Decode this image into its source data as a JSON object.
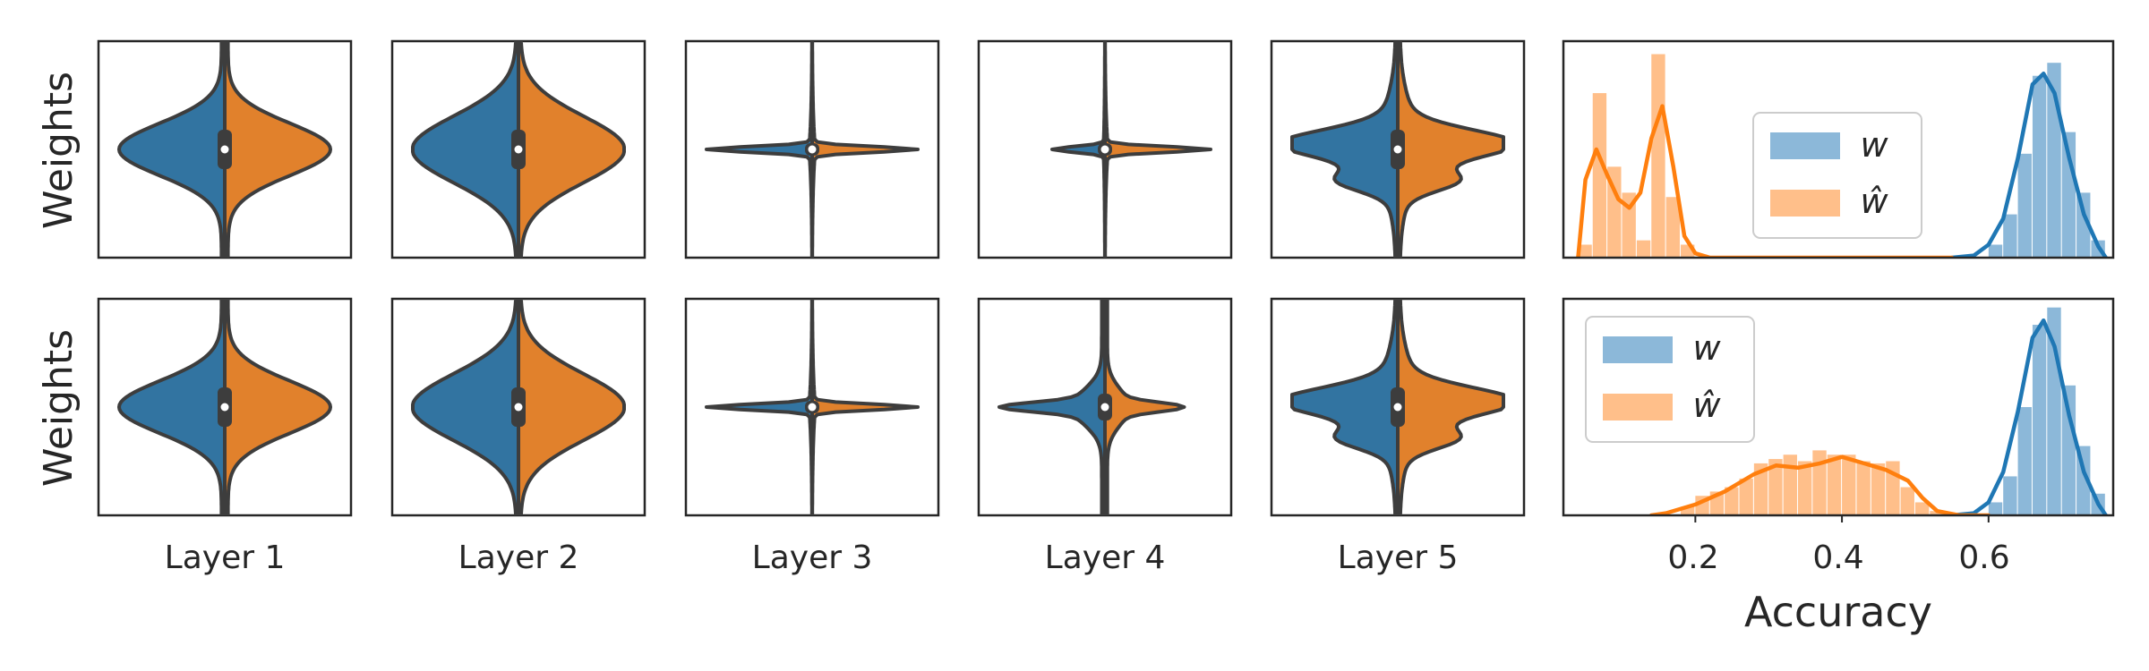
{
  "ylabels": [
    "Weights",
    "Weights"
  ],
  "layer_labels": [
    "Layer 1",
    "Layer 2",
    "Layer 3",
    "Layer 4",
    "Layer 5"
  ],
  "hist_xlabel": "Accuracy",
  "hist_xticks": [
    "0.2",
    "0.4",
    "0.6"
  ],
  "legend": [
    {
      "label": "w",
      "color": "#1f77b4"
    },
    {
      "label": "ŵ",
      "color": "#ff7f0e"
    }
  ],
  "colors": {
    "w": "#1f77b4",
    "w_hat": "#ff7f0e",
    "w_violin": "#3274a1",
    "w_hat_violin": "#e1812c",
    "hist_w": "#8cb8d9",
    "hist_w_hat": "#ffbf8a",
    "axis": "#262626",
    "violin_edge": "#3d3d3d"
  },
  "chart_data": [
    {
      "type": "violin",
      "row": 1,
      "ylabel": "Weights",
      "split": true,
      "categories": [
        "Layer 1",
        "Layer 2",
        "Layer 3",
        "Layer 4",
        "Layer 5"
      ],
      "series": [
        {
          "name": "w",
          "relative_widths": [
            0.8,
            0.8,
            0.8,
            0.4,
            0.8
          ],
          "shape": [
            "smooth",
            "wide",
            "spike",
            "spike",
            "bumpy"
          ]
        },
        {
          "name": "ŵ",
          "relative_widths": [
            0.8,
            0.8,
            0.8,
            0.8,
            0.8
          ],
          "shape": [
            "smooth",
            "wide",
            "spike",
            "spike",
            "bumpy"
          ]
        }
      ]
    },
    {
      "type": "violin",
      "row": 2,
      "ylabel": "Weights",
      "split": true,
      "categories": [
        "Layer 1",
        "Layer 2",
        "Layer 3",
        "Layer 4",
        "Layer 5"
      ],
      "series": [
        {
          "name": "w",
          "relative_widths": [
            0.8,
            0.8,
            0.8,
            0.8,
            0.8
          ],
          "shape": [
            "smooth",
            "wide",
            "spike",
            "peaked",
            "bumpy"
          ]
        },
        {
          "name": "ŵ",
          "relative_widths": [
            0.8,
            0.8,
            0.8,
            0.6,
            0.8
          ],
          "shape": [
            "smooth",
            "wide",
            "spike",
            "peaked",
            "bumpy"
          ]
        }
      ]
    },
    {
      "type": "histogram",
      "row": 1,
      "xlabel": "",
      "xlim": [
        0.02,
        0.77
      ],
      "xticks": [
        0.2,
        0.4,
        0.6
      ],
      "legend_position": "center-right",
      "series": [
        {
          "name": "w",
          "bins": [
            [
              0.6,
              0.62,
              0.06
            ],
            [
              0.62,
              0.64,
              0.2
            ],
            [
              0.64,
              0.66,
              0.48
            ],
            [
              0.66,
              0.68,
              0.84
            ],
            [
              0.68,
              0.7,
              0.9
            ],
            [
              0.7,
              0.72,
              0.58
            ],
            [
              0.72,
              0.74,
              0.3
            ],
            [
              0.74,
              0.76,
              0.08
            ]
          ],
          "kde": [
            [
              0.55,
              0.0
            ],
            [
              0.58,
              0.01
            ],
            [
              0.6,
              0.06
            ],
            [
              0.62,
              0.18
            ],
            [
              0.64,
              0.46
            ],
            [
              0.66,
              0.8
            ],
            [
              0.675,
              0.85
            ],
            [
              0.69,
              0.76
            ],
            [
              0.71,
              0.46
            ],
            [
              0.73,
              0.2
            ],
            [
              0.75,
              0.05
            ],
            [
              0.76,
              0.0
            ]
          ]
        },
        {
          "name": "ŵ",
          "bins": [
            [
              0.04,
              0.06,
              0.06
            ],
            [
              0.06,
              0.08,
              0.76
            ],
            [
              0.08,
              0.1,
              0.42
            ],
            [
              0.1,
              0.12,
              0.3
            ],
            [
              0.12,
              0.14,
              0.08
            ],
            [
              0.14,
              0.16,
              0.94
            ],
            [
              0.16,
              0.18,
              0.28
            ],
            [
              0.18,
              0.2,
              0.06
            ]
          ],
          "kde": [
            [
              0.04,
              0.0
            ],
            [
              0.05,
              0.36
            ],
            [
              0.065,
              0.5
            ],
            [
              0.08,
              0.38
            ],
            [
              0.095,
              0.27
            ],
            [
              0.11,
              0.23
            ],
            [
              0.125,
              0.3
            ],
            [
              0.14,
              0.55
            ],
            [
              0.155,
              0.7
            ],
            [
              0.17,
              0.42
            ],
            [
              0.185,
              0.1
            ],
            [
              0.2,
              0.02
            ],
            [
              0.22,
              0.0
            ],
            [
              0.3,
              0.0
            ],
            [
              0.55,
              0.0
            ]
          ]
        }
      ]
    },
    {
      "type": "histogram",
      "row": 2,
      "xlabel": "Accuracy",
      "xlim": [
        0.02,
        0.77
      ],
      "xticks": [
        0.2,
        0.4,
        0.6
      ],
      "legend_position": "upper-left",
      "series": [
        {
          "name": "w",
          "bins": [
            [
              0.6,
              0.62,
              0.06
            ],
            [
              0.62,
              0.64,
              0.18
            ],
            [
              0.64,
              0.66,
              0.5
            ],
            [
              0.66,
              0.68,
              0.88
            ],
            [
              0.68,
              0.7,
              0.96
            ],
            [
              0.7,
              0.72,
              0.6
            ],
            [
              0.72,
              0.74,
              0.32
            ],
            [
              0.74,
              0.76,
              0.1
            ]
          ],
          "kde": [
            [
              0.55,
              0.0
            ],
            [
              0.58,
              0.01
            ],
            [
              0.6,
              0.06
            ],
            [
              0.62,
              0.2
            ],
            [
              0.64,
              0.48
            ],
            [
              0.66,
              0.82
            ],
            [
              0.675,
              0.9
            ],
            [
              0.69,
              0.78
            ],
            [
              0.71,
              0.46
            ],
            [
              0.73,
              0.2
            ],
            [
              0.75,
              0.05
            ],
            [
              0.76,
              0.0
            ]
          ]
        },
        {
          "name": "ŵ",
          "bins": [
            [
              0.18,
              0.2,
              0.04
            ],
            [
              0.2,
              0.22,
              0.09
            ],
            [
              0.22,
              0.24,
              0.11
            ],
            [
              0.24,
              0.26,
              0.13
            ],
            [
              0.26,
              0.28,
              0.17
            ],
            [
              0.28,
              0.3,
              0.24
            ],
            [
              0.3,
              0.32,
              0.26
            ],
            [
              0.32,
              0.34,
              0.28
            ],
            [
              0.34,
              0.36,
              0.25
            ],
            [
              0.36,
              0.38,
              0.3
            ],
            [
              0.38,
              0.4,
              0.28
            ],
            [
              0.4,
              0.42,
              0.28
            ],
            [
              0.42,
              0.44,
              0.25
            ],
            [
              0.44,
              0.46,
              0.24
            ],
            [
              0.46,
              0.48,
              0.25
            ],
            [
              0.48,
              0.5,
              0.13
            ],
            [
              0.5,
              0.52,
              0.06
            ],
            [
              0.52,
              0.54,
              0.02
            ]
          ],
          "kde": [
            [
              0.14,
              0.0
            ],
            [
              0.16,
              0.01
            ],
            [
              0.2,
              0.05
            ],
            [
              0.24,
              0.11
            ],
            [
              0.28,
              0.19
            ],
            [
              0.31,
              0.23
            ],
            [
              0.34,
              0.22
            ],
            [
              0.37,
              0.24
            ],
            [
              0.4,
              0.27
            ],
            [
              0.43,
              0.24
            ],
            [
              0.46,
              0.21
            ],
            [
              0.49,
              0.16
            ],
            [
              0.51,
              0.08
            ],
            [
              0.53,
              0.02
            ],
            [
              0.56,
              0.0
            ],
            [
              0.6,
              0.0
            ]
          ]
        }
      ]
    }
  ]
}
